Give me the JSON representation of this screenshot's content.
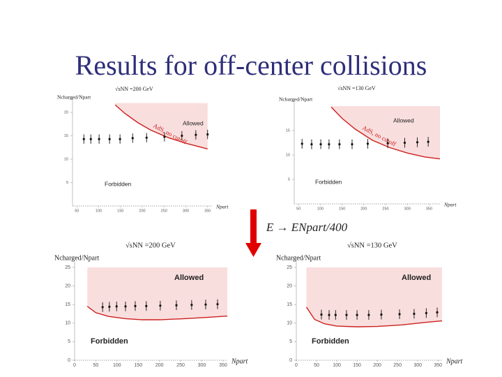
{
  "title": "Results for off-center collisions",
  "formula": "E → ENpart/400",
  "chart_data": [
    {
      "type": "scatter",
      "y_label": "Ncharged/Npart",
      "x_label": "Npart",
      "energy": "√sNN =200 GeV",
      "allowed": "Allowed",
      "forbidden": "Forbidden",
      "curve_label": "AdS, no cutoff",
      "xlim": [
        40,
        360
      ],
      "ylim": [
        0,
        22
      ],
      "xticks": [
        50,
        100,
        150,
        200,
        250,
        300,
        350
      ],
      "yticks": [
        5,
        10,
        15,
        20
      ],
      "x": [
        66,
        82,
        101,
        125,
        149,
        178,
        210,
        251,
        291,
        323,
        350
      ],
      "values": [
        14.3,
        14.3,
        14.3,
        14.3,
        14.3,
        14.5,
        14.6,
        14.8,
        15,
        15.2,
        15.3
      ],
      "errors": [
        1,
        1,
        1,
        1,
        1,
        1,
        1,
        1,
        1,
        1,
        1
      ],
      "color": "#111111",
      "curve": {
        "color": "#cc1f1f",
        "x": [
          138,
          160,
          190,
          220,
          260,
          300,
          350
        ],
        "values": [
          21.6,
          19.8,
          17.8,
          16.2,
          14.6,
          13.4,
          12.2
        ]
      }
    },
    {
      "type": "scatter",
      "y_label": "Ncharged/Npart",
      "x_label": "Npart",
      "energy": "√sNN =130 GeV",
      "allowed": "Allowed",
      "forbidden": "Forbidden",
      "curve_label": "AdS, no cutoff",
      "xlim": [
        40,
        375
      ],
      "ylim": [
        0,
        20
      ],
      "xticks": [
        50,
        100,
        150,
        200,
        250,
        300,
        350
      ],
      "yticks": [
        5,
        10,
        15
      ],
      "x": [
        58,
        80,
        101,
        120,
        144,
        173,
        209,
        255,
        294,
        323,
        348
      ],
      "values": [
        12.3,
        12.2,
        12.2,
        12.2,
        12.2,
        12.2,
        12.3,
        12.4,
        12.5,
        12.6,
        12.7
      ],
      "errors": [
        1,
        1,
        1,
        1,
        1,
        1,
        1,
        1,
        1,
        1,
        1
      ],
      "color": "#111111",
      "curve": {
        "color": "#cc1f1f",
        "x": [
          125,
          150,
          180,
          220,
          260,
          300,
          340,
          375
        ],
        "values": [
          19.8,
          17.5,
          15.3,
          13,
          11.5,
          10.4,
          9.6,
          9.2
        ]
      }
    },
    {
      "type": "scatter",
      "y_label": "Ncharged/Npart",
      "x_label": "Npart",
      "energy": "√sNN =200 GeV",
      "allowed": "Allowed",
      "forbidden": "Forbidden",
      "xlim": [
        0,
        360
      ],
      "ylim": [
        0,
        25
      ],
      "xticks": [
        0,
        50,
        100,
        150,
        200,
        250,
        300,
        350
      ],
      "yticks": [
        0,
        5,
        10,
        15,
        20,
        25
      ],
      "x": [
        66,
        82,
        99,
        120,
        143,
        169,
        202,
        240,
        276,
        309,
        337
      ],
      "values": [
        14.3,
        14.4,
        14.5,
        14.5,
        14.6,
        14.6,
        14.7,
        14.8,
        14.9,
        15,
        15.1
      ],
      "errors": [
        1.3,
        1.3,
        1.3,
        1.3,
        1.3,
        1.3,
        1.3,
        1.3,
        1.3,
        1.3,
        1.3
      ],
      "color": "#111111",
      "curve": {
        "color": "#cc1f1f",
        "x": [
          30,
          50,
          80,
          120,
          160,
          200,
          260,
          320,
          360
        ],
        "values": [
          14.5,
          12.8,
          11.8,
          11.2,
          10.9,
          10.9,
          11.2,
          11.6,
          11.9
        ]
      }
    },
    {
      "type": "scatter",
      "y_label": "Ncharged/Npart",
      "x_label": "Npart",
      "energy": "√sNN =130 GeV",
      "allowed": "Allowed",
      "forbidden": "Forbidden",
      "xlim": [
        0,
        360
      ],
      "ylim": [
        0,
        25
      ],
      "xticks": [
        0,
        50,
        100,
        150,
        200,
        250,
        300,
        350
      ],
      "yticks": [
        0,
        5,
        10,
        15,
        20,
        25
      ],
      "x": [
        62,
        81,
        97,
        124,
        150,
        179,
        210,
        255,
        291,
        321,
        348
      ],
      "values": [
        12.3,
        12.2,
        12.2,
        12.2,
        12.2,
        12.2,
        12.3,
        12.4,
        12.5,
        12.7,
        12.9
      ],
      "errors": [
        1.3,
        1.3,
        1.3,
        1.3,
        1.3,
        1.3,
        1.3,
        1.3,
        1.3,
        1.3,
        1.3
      ],
      "color": "#111111",
      "curve": {
        "color": "#cc1f1f",
        "x": [
          25,
          45,
          70,
          100,
          150,
          200,
          260,
          320,
          360
        ],
        "values": [
          14.3,
          11,
          9.8,
          9.2,
          9,
          9.1,
          9.5,
          10.2,
          10.6
        ]
      }
    }
  ]
}
